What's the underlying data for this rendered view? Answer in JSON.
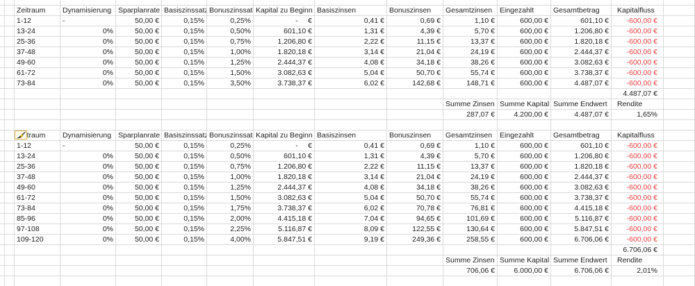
{
  "colors": {
    "background": "#ffffff",
    "text": "#1c1c1c",
    "gridline": "#d9d9d9",
    "negative": "#ee3d3f",
    "cursor_box_border": "#d4b24c",
    "cursor_box_bg": "#fdfaef"
  },
  "icons": {
    "format_painter_cursor": "paintbrush"
  },
  "sheet": {
    "columns": [
      "Zeitraum",
      "Dynamisierung",
      "Sparplanrate",
      "Basiszinssatz",
      "Bonuszinssatz",
      "Kapital zu Beginn",
      "Basiszinsen",
      "Bonuszinsen",
      "Gesamtzinsen",
      "Eingezahlt",
      "Gesamtbetrag",
      "Kapitalfluss"
    ],
    "summary_headers": [
      "Summe Zinsen",
      "Summe Kapital",
      "Summe Endwert",
      "Rendite"
    ],
    "tables": [
      {
        "rows": [
          [
            "1-12",
            "-",
            "50,00 €",
            "0,15%",
            "0,25%",
            "-     €",
            "0,41 €",
            "0,69 €",
            "1,10 €",
            "600,00 €",
            "601,10 €",
            "-600,00 €"
          ],
          [
            "13-24",
            "0%",
            "50,00 €",
            "0,15%",
            "0,50%",
            "601,10 €",
            "1,31 €",
            "4,39 €",
            "5,70 €",
            "600,00 €",
            "1.206,80 €",
            "-600,00 €"
          ],
          [
            "25-36",
            "0%",
            "50,00 €",
            "0,15%",
            "0,75%",
            "1.206,80 €",
            "2,22 €",
            "11,15 €",
            "13,37 €",
            "600,00 €",
            "1.820,18 €",
            "-600,00 €"
          ],
          [
            "37-48",
            "0%",
            "50,00 €",
            "0,15%",
            "1,00%",
            "1.820,18 €",
            "3,14 €",
            "21,04 €",
            "24,19 €",
            "600,00 €",
            "2.444,37 €",
            "-600,00 €"
          ],
          [
            "49-60",
            "0%",
            "50,00 €",
            "0,15%",
            "1,25%",
            "2.444,37 €",
            "4,08 €",
            "34,18 €",
            "38,26 €",
            "600,00 €",
            "3.082,63 €",
            "-600,00 €"
          ],
          [
            "61-72",
            "0%",
            "50,00 €",
            "0,15%",
            "1,50%",
            "3.082,63 €",
            "5,04 €",
            "50,70 €",
            "55,74 €",
            "600,00 €",
            "3.738,37 €",
            "-600,00 €"
          ],
          [
            "73-84",
            "0%",
            "50,00 €",
            "0,15%",
            "3,50%",
            "3.738,37 €",
            "6,02 €",
            "142,68 €",
            "148,71 €",
            "600,00 €",
            "4.487,07 €",
            "-600,00 €"
          ]
        ],
        "total_endwert": "4.487,07 €",
        "summary_values": [
          "287,07 €",
          "4.200,00 €",
          "4.487,07 €",
          "1,65%"
        ]
      },
      {
        "rows": [
          [
            "1-12",
            "-",
            "50,00 €",
            "0,15%",
            "0,25%",
            "-     €",
            "0,41 €",
            "0,69 €",
            "1,10 €",
            "600,00 €",
            "601,10 €",
            "-600,00 €"
          ],
          [
            "13-24",
            "0%",
            "50,00 €",
            "0,15%",
            "0,50%",
            "601,10 €",
            "1,31 €",
            "4,39 €",
            "5,70 €",
            "600,00 €",
            "1.206,80 €",
            "-600,00 €"
          ],
          [
            "25-36",
            "0%",
            "50,00 €",
            "0,15%",
            "0,75%",
            "1.206,80 €",
            "2,22 €",
            "11,15 €",
            "13,37 €",
            "600,00 €",
            "1.820,18 €",
            "-600,00 €"
          ],
          [
            "37-48",
            "0%",
            "50,00 €",
            "0,15%",
            "1,00%",
            "1.820,18 €",
            "3,14 €",
            "21,04 €",
            "24,19 €",
            "600,00 €",
            "2.444,37 €",
            "-600,00 €"
          ],
          [
            "49-60",
            "0%",
            "50,00 €",
            "0,15%",
            "1,25%",
            "2.444,37 €",
            "4,08 €",
            "34,18 €",
            "38,26 €",
            "600,00 €",
            "3.082,63 €",
            "-600,00 €"
          ],
          [
            "61-72",
            "0%",
            "50,00 €",
            "0,15%",
            "1,50%",
            "3.082,63 €",
            "5,04 €",
            "50,70 €",
            "55,74 €",
            "600,00 €",
            "3.738,37 €",
            "-600,00 €"
          ],
          [
            "73-84",
            "0%",
            "50,00 €",
            "0,15%",
            "1,75%",
            "3.738,37 €",
            "6,02 €",
            "70,78 €",
            "76,81 €",
            "600,00 €",
            "4.415,18 €",
            "-600,00 €"
          ],
          [
            "85-96",
            "0%",
            "50,00 €",
            "0,15%",
            "2,00%",
            "4.415,18 €",
            "7,04 €",
            "94,65 €",
            "101,69 €",
            "600,00 €",
            "5.116,87 €",
            "-600,00 €"
          ],
          [
            "97-108",
            "0%",
            "50,00 €",
            "0,15%",
            "2,25%",
            "5.116,87 €",
            "8,09 €",
            "122,55 €",
            "130,64 €",
            "600,00 €",
            "5.847,51 €",
            "-600,00 €"
          ],
          [
            "109-120",
            "0%",
            "50,00 €",
            "0,15%",
            "4,00%",
            "5.847,51 €",
            "9,19 €",
            "249,36 €",
            "258,55 €",
            "600,00 €",
            "6.706,06 €",
            "-600,00 €"
          ]
        ],
        "total_endwert": "6.706,06 €",
        "summary_values": [
          "706,06 €",
          "6.000,00 €",
          "6.706,06 €",
          "2,01%"
        ]
      }
    ]
  }
}
